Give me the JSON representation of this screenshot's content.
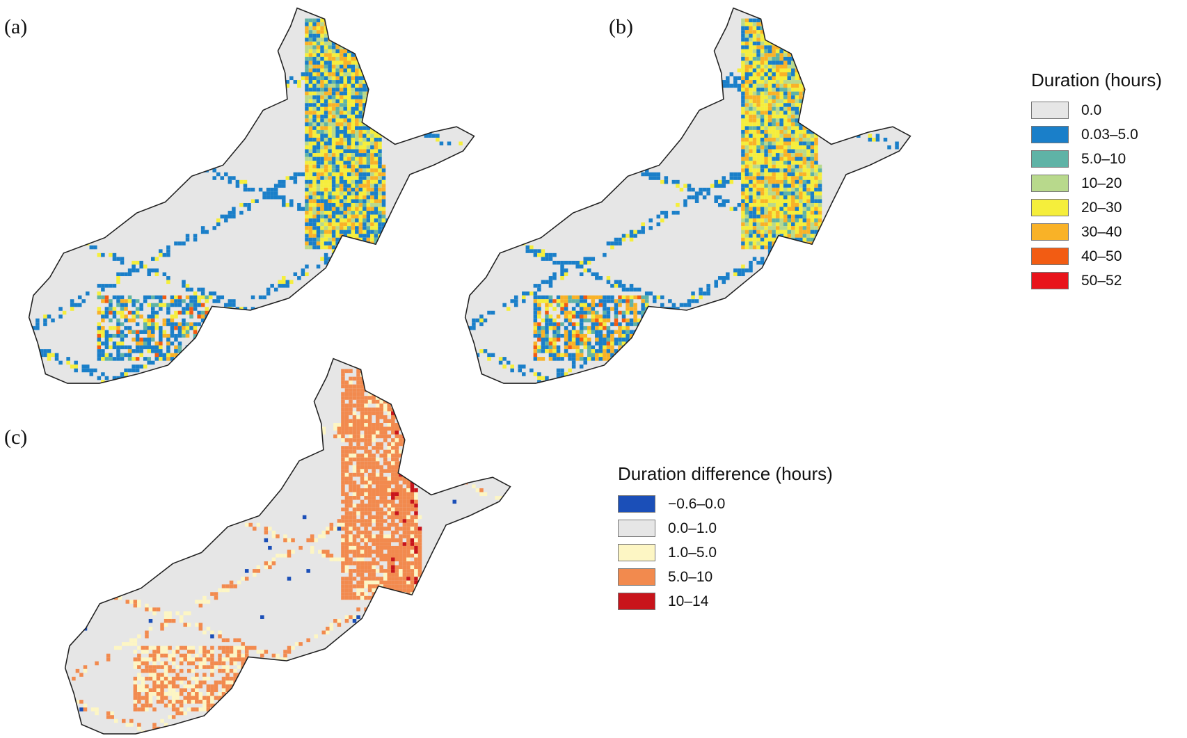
{
  "panels": {
    "a": {
      "label": "(a)",
      "variant": "baseline"
    },
    "b": {
      "label": "(b)",
      "variant": "scenario"
    },
    "c": {
      "label": "(c)",
      "variant": "difference"
    }
  },
  "legend_duration": {
    "title": "Duration (hours)",
    "items": [
      {
        "label": "0.0",
        "color": "#e6e6e6"
      },
      {
        "label": "0.03–5.0",
        "color": "#1a7fc9"
      },
      {
        "label": "5.0–10",
        "color": "#5fb3a6"
      },
      {
        "label": "10–20",
        "color": "#b8d98c"
      },
      {
        "label": "20–30",
        "color": "#f5ee3b"
      },
      {
        "label": "30–40",
        "color": "#f9b227"
      },
      {
        "label": "40–50",
        "color": "#f25c13"
      },
      {
        "label": "50–52",
        "color": "#e8141b"
      }
    ]
  },
  "legend_difference": {
    "title": "Duration difference (hours)",
    "items": [
      {
        "label": "−0.6–0.0",
        "color": "#1b4fb8"
      },
      {
        "label": "0.0–1.0",
        "color": "#e6e6e6"
      },
      {
        "label": "1.0–5.0",
        "color": "#fdf6c4"
      },
      {
        "label": "5.0–10",
        "color": "#f28a4e"
      },
      {
        "label": "10–14",
        "color": "#c8141b"
      }
    ]
  }
}
